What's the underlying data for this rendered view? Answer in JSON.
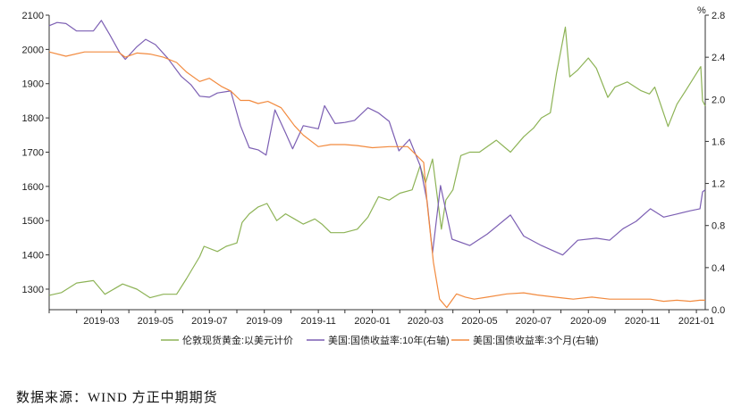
{
  "source_text": "数据来源：WIND  方正中期期货",
  "chart_data": {
    "type": "line",
    "title": "",
    "left_axis": {
      "ylim": [
        1240,
        2100
      ],
      "ticks": [
        1300,
        1400,
        1500,
        1600,
        1700,
        1800,
        1900,
        2000,
        2100
      ]
    },
    "right_axis": {
      "unit": "%",
      "ylim": [
        0,
        2.8
      ],
      "ticks": [
        0.0,
        0.4,
        0.8,
        1.2,
        1.6,
        2.0,
        2.4,
        2.8
      ],
      "tick_labels": [
        "0.0",
        "0.4",
        "0.8",
        "1.2",
        "1.6",
        "2.0",
        "2.4",
        "2.8"
      ]
    },
    "x_range": [
      "2019-01-01",
      "2021-01-11"
    ],
    "x_ticks": [
      "2019-03",
      "2019-05",
      "2019-07",
      "2019-09",
      "2019-11",
      "2020-01",
      "2020-03",
      "2020-05",
      "2020-07",
      "2020-09",
      "2020-11",
      "2021-01"
    ],
    "grid": false,
    "legend_position": "bottom",
    "series": [
      {
        "name": "伦敦现货黄金:以美元计价",
        "axis": "left",
        "color": "#8db356",
        "points": [
          [
            "2019-01-01",
            1282
          ],
          [
            "2019-01-15",
            1290
          ],
          [
            "2019-02-01",
            1318
          ],
          [
            "2019-02-20",
            1325
          ],
          [
            "2019-03-05",
            1285
          ],
          [
            "2019-03-25",
            1315
          ],
          [
            "2019-04-10",
            1300
          ],
          [
            "2019-04-25",
            1275
          ],
          [
            "2019-05-10",
            1285
          ],
          [
            "2019-05-25",
            1285
          ],
          [
            "2019-06-05",
            1330
          ],
          [
            "2019-06-20",
            1395
          ],
          [
            "2019-06-25",
            1425
          ],
          [
            "2019-07-10",
            1410
          ],
          [
            "2019-07-20",
            1425
          ],
          [
            "2019-08-01",
            1435
          ],
          [
            "2019-08-07",
            1495
          ],
          [
            "2019-08-15",
            1520
          ],
          [
            "2019-08-25",
            1540
          ],
          [
            "2019-09-04",
            1550
          ],
          [
            "2019-09-15",
            1500
          ],
          [
            "2019-09-25",
            1520
          ],
          [
            "2019-10-05",
            1505
          ],
          [
            "2019-10-15",
            1490
          ],
          [
            "2019-10-28",
            1505
          ],
          [
            "2019-11-05",
            1490
          ],
          [
            "2019-11-15",
            1465
          ],
          [
            "2019-11-30",
            1465
          ],
          [
            "2019-12-15",
            1475
          ],
          [
            "2019-12-27",
            1510
          ],
          [
            "2020-01-08",
            1570
          ],
          [
            "2020-01-20",
            1560
          ],
          [
            "2020-02-01",
            1580
          ],
          [
            "2020-02-15",
            1590
          ],
          [
            "2020-02-24",
            1660
          ],
          [
            "2020-03-01",
            1610
          ],
          [
            "2020-03-09",
            1680
          ],
          [
            "2020-03-19",
            1475
          ],
          [
            "2020-03-24",
            1560
          ],
          [
            "2020-04-01",
            1590
          ],
          [
            "2020-04-10",
            1690
          ],
          [
            "2020-04-20",
            1700
          ],
          [
            "2020-05-01",
            1700
          ],
          [
            "2020-05-20",
            1735
          ],
          [
            "2020-06-05",
            1700
          ],
          [
            "2020-06-20",
            1745
          ],
          [
            "2020-07-01",
            1770
          ],
          [
            "2020-07-10",
            1800
          ],
          [
            "2020-07-20",
            1815
          ],
          [
            "2020-07-27",
            1930
          ],
          [
            "2020-08-06",
            2065
          ],
          [
            "2020-08-11",
            1920
          ],
          [
            "2020-08-20",
            1940
          ],
          [
            "2020-09-01",
            1975
          ],
          [
            "2020-09-10",
            1945
          ],
          [
            "2020-09-23",
            1860
          ],
          [
            "2020-10-01",
            1890
          ],
          [
            "2020-10-15",
            1905
          ],
          [
            "2020-10-30",
            1880
          ],
          [
            "2020-11-09",
            1870
          ],
          [
            "2020-11-15",
            1890
          ],
          [
            "2020-11-30",
            1775
          ],
          [
            "2020-12-10",
            1840
          ],
          [
            "2020-12-20",
            1880
          ],
          [
            "2021-01-06",
            1950
          ],
          [
            "2021-01-08",
            1850
          ],
          [
            "2021-01-11",
            1835
          ]
        ]
      },
      {
        "name": "美国:国债收益率:10年(右轴)",
        "axis": "right",
        "color": "#7c5fb3",
        "points": [
          [
            "2019-01-01",
            2.7
          ],
          [
            "2019-01-10",
            2.73
          ],
          [
            "2019-01-20",
            2.72
          ],
          [
            "2019-02-01",
            2.65
          ],
          [
            "2019-02-10",
            2.65
          ],
          [
            "2019-02-20",
            2.65
          ],
          [
            "2019-03-01",
            2.75
          ],
          [
            "2019-03-10",
            2.62
          ],
          [
            "2019-03-22",
            2.44
          ],
          [
            "2019-03-28",
            2.38
          ],
          [
            "2019-04-10",
            2.5
          ],
          [
            "2019-04-20",
            2.57
          ],
          [
            "2019-05-01",
            2.52
          ],
          [
            "2019-05-15",
            2.39
          ],
          [
            "2019-05-30",
            2.22
          ],
          [
            "2019-06-10",
            2.14
          ],
          [
            "2019-06-20",
            2.03
          ],
          [
            "2019-07-01",
            2.02
          ],
          [
            "2019-07-10",
            2.06
          ],
          [
            "2019-07-25",
            2.08
          ],
          [
            "2019-08-05",
            1.75
          ],
          [
            "2019-08-15",
            1.54
          ],
          [
            "2019-08-25",
            1.52
          ],
          [
            "2019-09-03",
            1.47
          ],
          [
            "2019-09-13",
            1.9
          ],
          [
            "2019-09-25",
            1.68
          ],
          [
            "2019-10-03",
            1.53
          ],
          [
            "2019-10-15",
            1.75
          ],
          [
            "2019-11-01",
            1.72
          ],
          [
            "2019-11-08",
            1.94
          ],
          [
            "2019-11-20",
            1.77
          ],
          [
            "2019-12-01",
            1.78
          ],
          [
            "2019-12-12",
            1.8
          ],
          [
            "2019-12-27",
            1.92
          ],
          [
            "2020-01-08",
            1.87
          ],
          [
            "2020-01-20",
            1.79
          ],
          [
            "2020-01-31",
            1.51
          ],
          [
            "2020-02-12",
            1.62
          ],
          [
            "2020-02-24",
            1.37
          ],
          [
            "2020-03-03",
            1.02
          ],
          [
            "2020-03-09",
            0.54
          ],
          [
            "2020-03-18",
            1.18
          ],
          [
            "2020-03-31",
            0.67
          ],
          [
            "2020-04-20",
            0.61
          ],
          [
            "2020-05-10",
            0.72
          ],
          [
            "2020-06-05",
            0.9
          ],
          [
            "2020-06-20",
            0.7
          ],
          [
            "2020-07-10",
            0.61
          ],
          [
            "2020-08-03",
            0.52
          ],
          [
            "2020-08-20",
            0.66
          ],
          [
            "2020-09-10",
            0.68
          ],
          [
            "2020-09-25",
            0.66
          ],
          [
            "2020-10-10",
            0.77
          ],
          [
            "2020-10-25",
            0.84
          ],
          [
            "2020-11-10",
            0.96
          ],
          [
            "2020-11-25",
            0.88
          ],
          [
            "2020-12-10",
            0.91
          ],
          [
            "2020-12-25",
            0.94
          ],
          [
            "2021-01-05",
            0.96
          ],
          [
            "2021-01-08",
            1.12
          ],
          [
            "2021-01-11",
            1.14
          ]
        ]
      },
      {
        "name": "美国:国债收益率:3个月(右轴)",
        "axis": "right",
        "color": "#f28a3e",
        "points": [
          [
            "2019-01-01",
            2.45
          ],
          [
            "2019-01-20",
            2.41
          ],
          [
            "2019-02-10",
            2.45
          ],
          [
            "2019-03-01",
            2.45
          ],
          [
            "2019-03-20",
            2.45
          ],
          [
            "2019-03-28",
            2.4
          ],
          [
            "2019-04-10",
            2.44
          ],
          [
            "2019-04-25",
            2.43
          ],
          [
            "2019-05-10",
            2.4
          ],
          [
            "2019-05-25",
            2.35
          ],
          [
            "2019-06-05",
            2.26
          ],
          [
            "2019-06-20",
            2.17
          ],
          [
            "2019-07-01",
            2.2
          ],
          [
            "2019-07-15",
            2.12
          ],
          [
            "2019-07-25",
            2.08
          ],
          [
            "2019-08-05",
            1.99
          ],
          [
            "2019-08-15",
            1.99
          ],
          [
            "2019-08-25",
            1.96
          ],
          [
            "2019-09-05",
            1.98
          ],
          [
            "2019-09-20",
            1.92
          ],
          [
            "2019-10-05",
            1.75
          ],
          [
            "2019-10-15",
            1.66
          ],
          [
            "2019-11-01",
            1.55
          ],
          [
            "2019-11-15",
            1.57
          ],
          [
            "2019-12-01",
            1.57
          ],
          [
            "2019-12-15",
            1.56
          ],
          [
            "2020-01-01",
            1.54
          ],
          [
            "2020-01-20",
            1.55
          ],
          [
            "2020-02-10",
            1.55
          ],
          [
            "2020-02-28",
            1.4
          ],
          [
            "2020-03-03",
            1.0
          ],
          [
            "2020-03-10",
            0.45
          ],
          [
            "2020-03-17",
            0.1
          ],
          [
            "2020-03-25",
            0.02
          ],
          [
            "2020-04-05",
            0.15
          ],
          [
            "2020-04-15",
            0.12
          ],
          [
            "2020-04-25",
            0.1
          ],
          [
            "2020-05-10",
            0.12
          ],
          [
            "2020-06-01",
            0.15
          ],
          [
            "2020-06-20",
            0.16
          ],
          [
            "2020-07-05",
            0.14
          ],
          [
            "2020-07-25",
            0.12
          ],
          [
            "2020-08-15",
            0.1
          ],
          [
            "2020-09-05",
            0.12
          ],
          [
            "2020-09-25",
            0.1
          ],
          [
            "2020-10-15",
            0.1
          ],
          [
            "2020-11-10",
            0.1
          ],
          [
            "2020-11-25",
            0.08
          ],
          [
            "2020-12-10",
            0.09
          ],
          [
            "2020-12-25",
            0.08
          ],
          [
            "2021-01-05",
            0.09
          ],
          [
            "2021-01-11",
            0.09
          ]
        ]
      }
    ]
  }
}
